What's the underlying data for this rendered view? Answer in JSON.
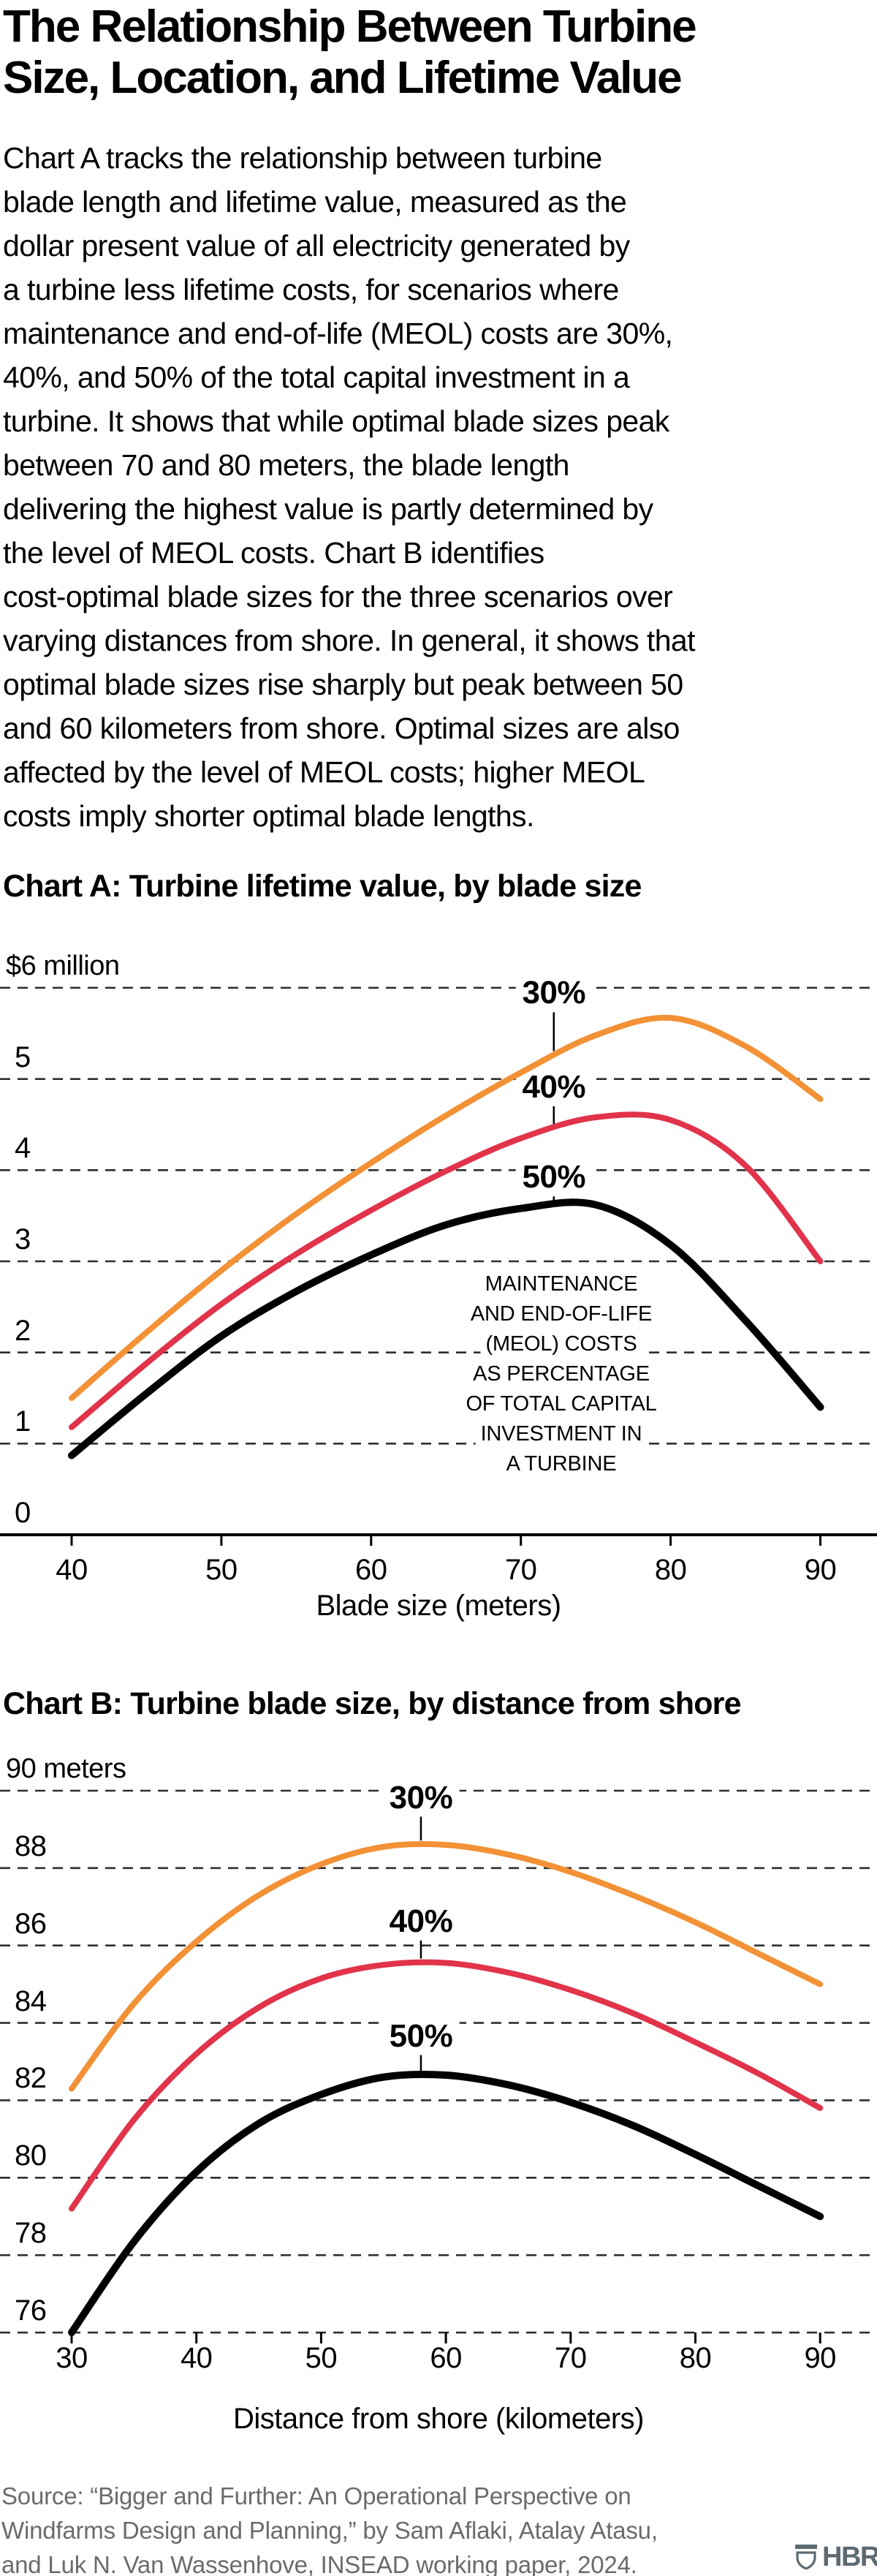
{
  "header": {
    "title": "The Relationship Between Turbine\nSize, Location, and Lifetime Value",
    "intro": "Chart A tracks the relationship between turbine\nblade length and lifetime value, measured as the\ndollar present value of all electricity generated by\na turbine less lifetime costs, for scenarios where\nmaintenance and end-of-life (MEOL) costs are 30%,\n40%, and 50% of the total capital investment in a\nturbine. It shows that while optimal blade sizes peak\nbetween 70 and 80 meters, the blade length\ndelivering the highest value is partly determined by\nthe level of MEOL costs. Chart B identifies\ncost-optimal blade sizes for the three scenarios over\nvarying distances from shore. In general, it shows that\noptimal blade sizes rise sharply but peak between 50\nand 60 kilometers from shore. Optimal sizes are also\naffected by the level of MEOL costs; higher MEOL\ncosts imply shorter optimal blade lengths."
  },
  "footer": {
    "source": "Source: “Bigger and Further: An Operational Perspective on\nWindfarms Design and Planning,” by Sam Aflaki, Atalay Atasu,\n and Luk N. Van Wassenhove, INSEAD working paper, 2024.",
    "logo_text": "HBR"
  },
  "colors": {
    "orange": "#F29135",
    "red": "#E1334A",
    "black": "#000000",
    "grid": "#2F2F2F",
    "source_gray": "#6B6B6B",
    "logo_slate": "#5E6A72"
  },
  "chart_data": [
    {
      "id": "chart-a",
      "type": "line",
      "title": "Chart A: Turbine lifetime value, by blade size",
      "x_label": "Blade size (meters)",
      "grid": "dashed-horizontal",
      "legend_position": "labels-on-chart",
      "y_axis": {
        "top_label": "$6 million",
        "unit": "$ million",
        "tick_values": [
          5,
          4,
          3,
          2,
          1,
          0
        ],
        "grid_values": [
          6,
          5,
          4,
          3,
          2,
          1
        ],
        "baseline_value": 0,
        "ylim": [
          0,
          6
        ]
      },
      "x_axis": {
        "tick_values": [
          40,
          50,
          60,
          70,
          80,
          90
        ],
        "xlim": [
          40,
          90
        ]
      },
      "annotation": "MAINTENANCE\nAND END-OF-LIFE\n(MEOL) COSTS\nAS PERCENTAGE\nOF TOTAL CAPITAL\nINVESTMENT IN\nA TURBINE",
      "series": [
        {
          "name": "30%",
          "color": "orange",
          "x": [
            40,
            45,
            50,
            55,
            60,
            65,
            70,
            75,
            80,
            85,
            90
          ],
          "y": [
            1.5,
            2.22,
            2.9,
            3.52,
            4.08,
            4.6,
            5.07,
            5.48,
            5.67,
            5.36,
            4.78
          ]
        },
        {
          "name": "40%",
          "color": "red",
          "x": [
            40,
            45,
            50,
            55,
            60,
            65,
            70,
            75,
            80,
            85,
            90
          ],
          "y": [
            1.18,
            1.88,
            2.53,
            3.08,
            3.56,
            3.99,
            4.35,
            4.58,
            4.55,
            4.05,
            3.0
          ]
        },
        {
          "name": "50%",
          "color": "black",
          "x": [
            40,
            45,
            50,
            55,
            60,
            65,
            70,
            75,
            80,
            85,
            90
          ],
          "y": [
            0.87,
            1.55,
            2.18,
            2.67,
            3.07,
            3.4,
            3.58,
            3.62,
            3.18,
            2.35,
            1.4
          ]
        }
      ],
      "series_labels": [
        {
          "text": "30%",
          "x": 72.2,
          "y": 5.94
        },
        {
          "text": "40%",
          "x": 72.2,
          "y": 4.91
        },
        {
          "text": "50%",
          "x": 72.2,
          "y": 3.92
        }
      ]
    },
    {
      "id": "chart-b",
      "type": "line",
      "title": "Chart B: Turbine blade size, by distance from shore",
      "x_label": "Distance from shore (kilometers)",
      "grid": "dashed-horizontal",
      "legend_position": "labels-on-chart",
      "y_axis": {
        "top_label": "90 meters",
        "unit": "meters",
        "tick_values": [
          88,
          86,
          84,
          82,
          80,
          78,
          76
        ],
        "grid_values": [
          90,
          88,
          86,
          84,
          82,
          80,
          78,
          76
        ],
        "baseline_value": 76,
        "ylim": [
          76,
          90
        ]
      },
      "x_axis": {
        "tick_values": [
          30,
          40,
          50,
          60,
          70,
          80,
          90
        ],
        "xlim": [
          30,
          90
        ]
      },
      "annotation": null,
      "series": [
        {
          "name": "30%",
          "color": "orange",
          "x": [
            30,
            35,
            40,
            45,
            50,
            55,
            60,
            65,
            70,
            75,
            80,
            85,
            90
          ],
          "y": [
            82.3,
            84.5,
            86.1,
            87.3,
            88.1,
            88.55,
            88.6,
            88.35,
            87.9,
            87.3,
            86.6,
            85.8,
            85.0
          ]
        },
        {
          "name": "40%",
          "color": "red",
          "x": [
            30,
            35,
            40,
            45,
            50,
            55,
            60,
            65,
            70,
            75,
            80,
            85,
            90
          ],
          "y": [
            79.2,
            81.5,
            83.2,
            84.4,
            85.15,
            85.5,
            85.55,
            85.3,
            84.85,
            84.25,
            83.5,
            82.7,
            81.8
          ]
        },
        {
          "name": "50%",
          "color": "black",
          "x": [
            30,
            35,
            40,
            45,
            50,
            55,
            60,
            65,
            70,
            75,
            80,
            85,
            90
          ],
          "y": [
            76.0,
            78.35,
            80.15,
            81.4,
            82.15,
            82.6,
            82.65,
            82.4,
            81.95,
            81.35,
            80.6,
            79.8,
            79.0
          ]
        }
      ],
      "series_labels": [
        {
          "text": "30%",
          "x": 58,
          "y": 89.82
        },
        {
          "text": "40%",
          "x": 58,
          "y": 86.62
        },
        {
          "text": "50%",
          "x": 58,
          "y": 83.66
        }
      ]
    }
  ]
}
